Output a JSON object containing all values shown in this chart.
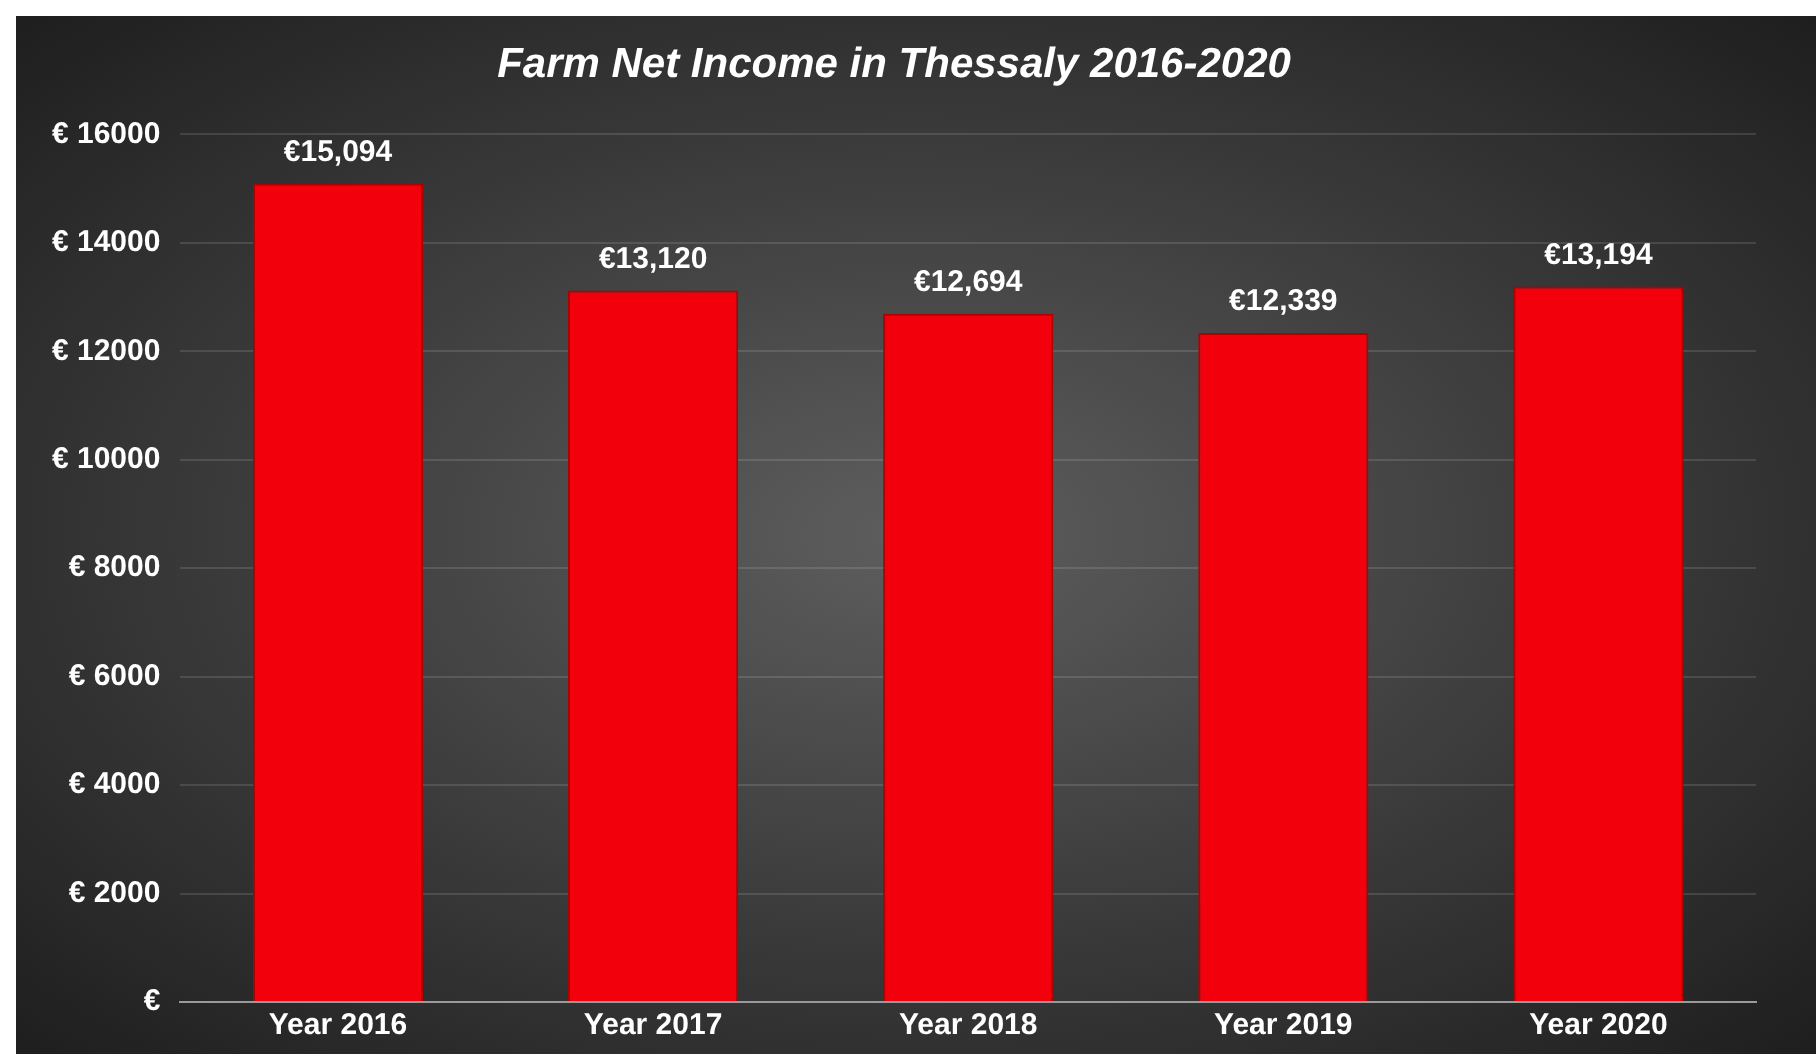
{
  "chart_data": {
    "type": "bar",
    "title": "Farm Net Income in Thessaly 2016-2020",
    "categories": [
      "Year 2016",
      "Year 2017",
      "Year 2018",
      "Year 2019",
      "Year 2020"
    ],
    "values": [
      15094,
      13120,
      12694,
      12339,
      13194
    ],
    "value_labels": [
      "€15,094",
      "€13,120",
      "€12,694",
      "€12,339",
      "€13,194"
    ],
    "color": "#f2000c",
    "ylim": [
      0,
      16000
    ],
    "yticks": [
      {
        "value": 0,
        "label": "€"
      },
      {
        "value": 2000,
        "label": "€ 2000"
      },
      {
        "value": 4000,
        "label": "€ 4000"
      },
      {
        "value": 6000,
        "label": "€ 6000"
      },
      {
        "value": 8000,
        "label": "€ 8000"
      },
      {
        "value": 10000,
        "label": "€ 10000"
      },
      {
        "value": 12000,
        "label": "€ 12000"
      },
      {
        "value": 14000,
        "label": "€ 14000"
      },
      {
        "value": 16000,
        "label": "€ 16000"
      }
    ],
    "grid": "y",
    "legend": false
  }
}
